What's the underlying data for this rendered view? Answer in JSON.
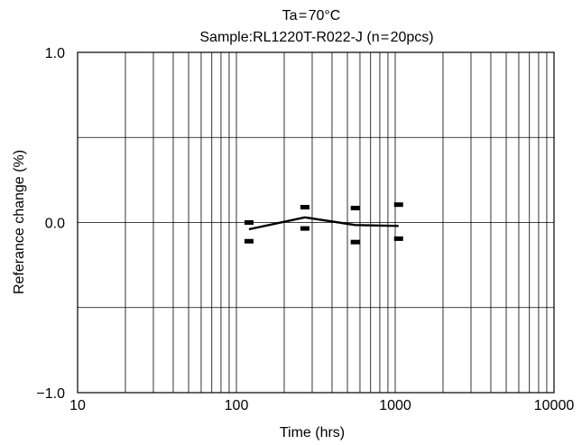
{
  "chart_data": {
    "type": "line",
    "title": "Ta = 70°C",
    "subtitle": "Sample:RL1220T-R022-J (n = 20pcs)",
    "xlabel": "Time (hrs)",
    "ylabel": "Referance change (%)",
    "x_scale": "log",
    "xlim": [
      10,
      10000
    ],
    "ylim": [
      -1.0,
      1.0
    ],
    "grid": true,
    "x_ticks": [
      {
        "value": 10,
        "label": "10"
      },
      {
        "value": 100,
        "label": "100"
      },
      {
        "value": 1000,
        "label": "1000"
      },
      {
        "value": 10000,
        "label": "10000"
      }
    ],
    "y_ticks": [
      {
        "value": 1.0,
        "label": "1.0"
      },
      {
        "value": 0.0,
        "label": "0.0"
      },
      {
        "value": -1.0,
        "label": "−1.0"
      }
    ],
    "series": [
      {
        "points": [
          {
            "x": 120,
            "y": -0.04
          },
          {
            "x": 270,
            "y": 0.03
          },
          {
            "x": 560,
            "y": -0.015
          },
          {
            "x": 1050,
            "y": -0.02
          }
        ]
      }
    ],
    "range_markers": [
      {
        "x": 120,
        "max": 0.0,
        "min": -0.11
      },
      {
        "x": 270,
        "max": 0.09,
        "min": -0.035
      },
      {
        "x": 560,
        "max": 0.085,
        "min": -0.115
      },
      {
        "x": 1050,
        "max": 0.105,
        "min": -0.095
      }
    ]
  }
}
